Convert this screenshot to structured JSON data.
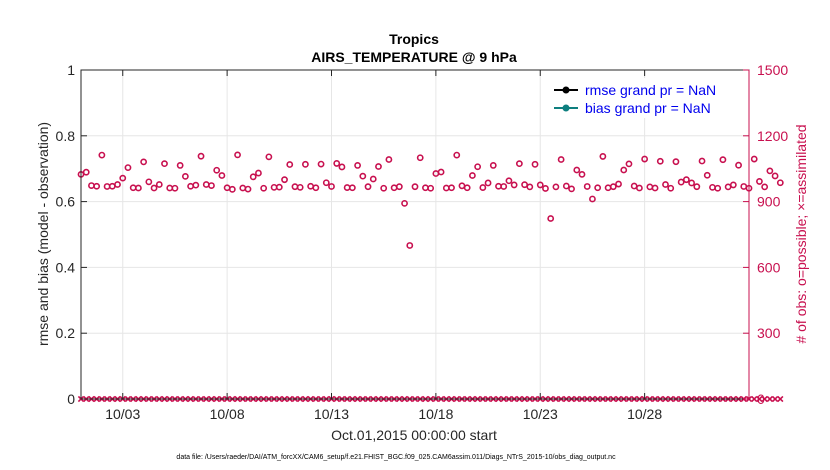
{
  "chart_data": {
    "type": "scatter",
    "title_line1": "Tropics",
    "title_line2": "AIRS_TEMPERATURE @ 9 hPa",
    "xlabel": "Oct.01,2015 00:00:00 start",
    "ylabel_left": "rmse and bias (model - observation)",
    "ylabel_right": "# of obs: o=possible; ×=assimilated",
    "left_ylim": [
      0,
      1
    ],
    "right_ylim": [
      0,
      1500
    ],
    "left_yticks": [
      "0",
      "0.2",
      "0.4",
      "0.6",
      "0.8",
      "1"
    ],
    "right_yticks": [
      "0",
      "300",
      "600",
      "900",
      "1200",
      "1500"
    ],
    "xlim": [
      1,
      33
    ],
    "xticks": [
      {
        "day": 3,
        "label": "10/03"
      },
      {
        "day": 8,
        "label": "10/08"
      },
      {
        "day": 13,
        "label": "10/13"
      },
      {
        "day": 18,
        "label": "10/18"
      },
      {
        "day": 23,
        "label": "10/23"
      },
      {
        "day": 28,
        "label": "10/28"
      }
    ],
    "legend": [
      {
        "label": "rmse grand pr = NaN",
        "color": "#000000"
      },
      {
        "label": "bias grand pr = NaN",
        "color": "#0e7f7f"
      }
    ],
    "grid": true,
    "series_possible": {
      "name": "possible obs",
      "marker": "o",
      "color": "#c8104f",
      "day_start": 1,
      "step": 0.25,
      "values": [
        1024,
        1034,
        973,
        970,
        1112,
        969,
        970,
        978,
        1007,
        1055,
        963,
        962,
        1081,
        990,
        962,
        978,
        1073,
        962,
        961,
        1065,
        1015,
        970,
        975,
        1107,
        978,
        973,
        1043,
        1019,
        963,
        956,
        1113,
        962,
        957,
        1013,
        1030,
        961,
        1104,
        965,
        966,
        1000,
        1069,
        968,
        965,
        1070,
        970,
        963,
        1071,
        986,
        969,
        1074,
        1058,
        964,
        963,
        1065,
        1016,
        968,
        1003,
        1060,
        961,
        1092,
        963,
        968,
        892,
        700,
        968,
        1100,
        963,
        961,
        1028,
        1035,
        962,
        963,
        1112,
        972,
        963,
        1019,
        1059,
        964,
        985,
        1065,
        970,
        969,
        995,
        976,
        1073,
        977,
        967,
        1070,
        976,
        960,
        823,
        967,
        1092,
        971,
        958,
        1044,
        1024,
        969,
        912,
        963,
        1106,
        963,
        968,
        980,
        1044,
        1072,
        971,
        962,
        1094,
        967,
        962,
        1084,
        978,
        961,
        1082,
        989,
        1000,
        985,
        968,
        1085,
        1020,
        965,
        961,
        1091,
        967,
        976,
        1066,
        969,
        961,
        1094,
        992,
        967,
        1040,
        1017,
        986
      ]
    },
    "series_assimilated": {
      "name": "assimilated obs",
      "marker": "x",
      "color": "#c8104f",
      "value": 0
    },
    "footer": "data file: /Users/raeder/DAI/ATM_forcXX/CAM6_setup/f.e21.FHIST_BGC.f09_025.CAM6assim.011/Diags_NTrS_2015-10/obs_diag_output.nc"
  }
}
